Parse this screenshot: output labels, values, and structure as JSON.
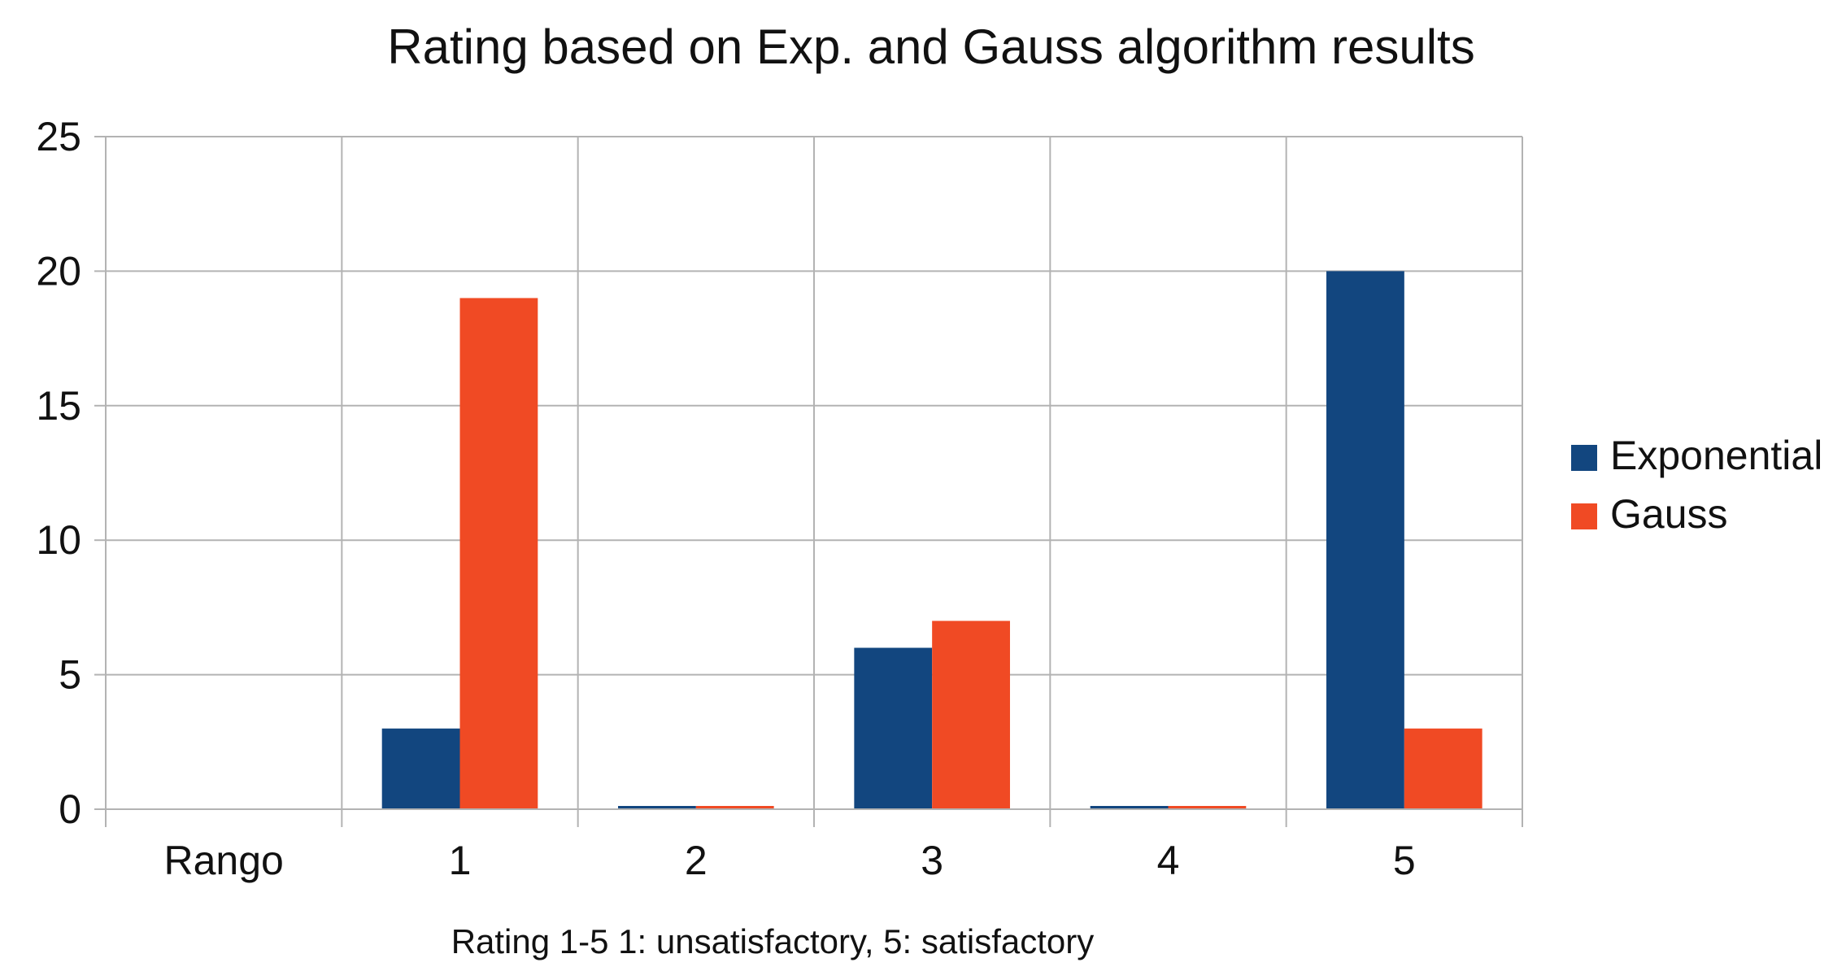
{
  "chart_data": {
    "type": "bar",
    "title": "Rating based on Exp. and Gauss algorithm results",
    "xlabel": "Rating 1-5 1: unsatisfactory, 5: satisfactory",
    "ylabel": "",
    "categories": [
      "Rango",
      "1",
      "2",
      "3",
      "4",
      "5"
    ],
    "series": [
      {
        "name": "Exponential",
        "color": "#12467f",
        "values": [
          null,
          3,
          0,
          6,
          0,
          20
        ]
      },
      {
        "name": "Gauss",
        "color": "#f04a24",
        "values": [
          null,
          19,
          0,
          7,
          0,
          3
        ]
      }
    ],
    "ylim": [
      0,
      25
    ],
    "yticks": [
      0,
      5,
      10,
      15,
      20,
      25
    ],
    "grid": true,
    "legend": "right"
  }
}
